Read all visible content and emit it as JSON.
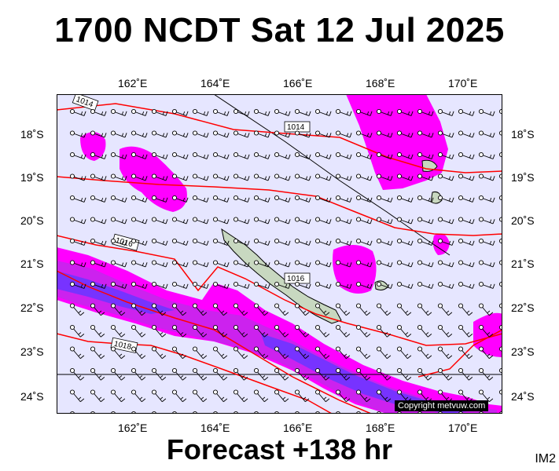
{
  "title": "1700 NCDT Sat 12 Jul 2025",
  "subtitle": "Forecast +138 hr",
  "corner_label": "IM2",
  "copyright": "Copyright metvuw.com",
  "axes": {
    "lon_ticks": [
      "162˚E",
      "164˚E",
      "166˚E",
      "168˚E",
      "170˚E"
    ],
    "lat_ticks": [
      "18˚S",
      "19˚S",
      "20˚S",
      "21˚S",
      "22˚S",
      "23˚S",
      "24˚S"
    ]
  },
  "isobars": [
    "1014",
    "1014",
    "1016",
    "1016",
    "1018"
  ],
  "colors": {
    "background": "#e6e6ff",
    "precip_light": "#ff00ff",
    "precip_medium": "#cc22ee",
    "precip_heavy": "#7733ff",
    "isobar": "#ff0000",
    "land": "#c8d8c0"
  }
}
